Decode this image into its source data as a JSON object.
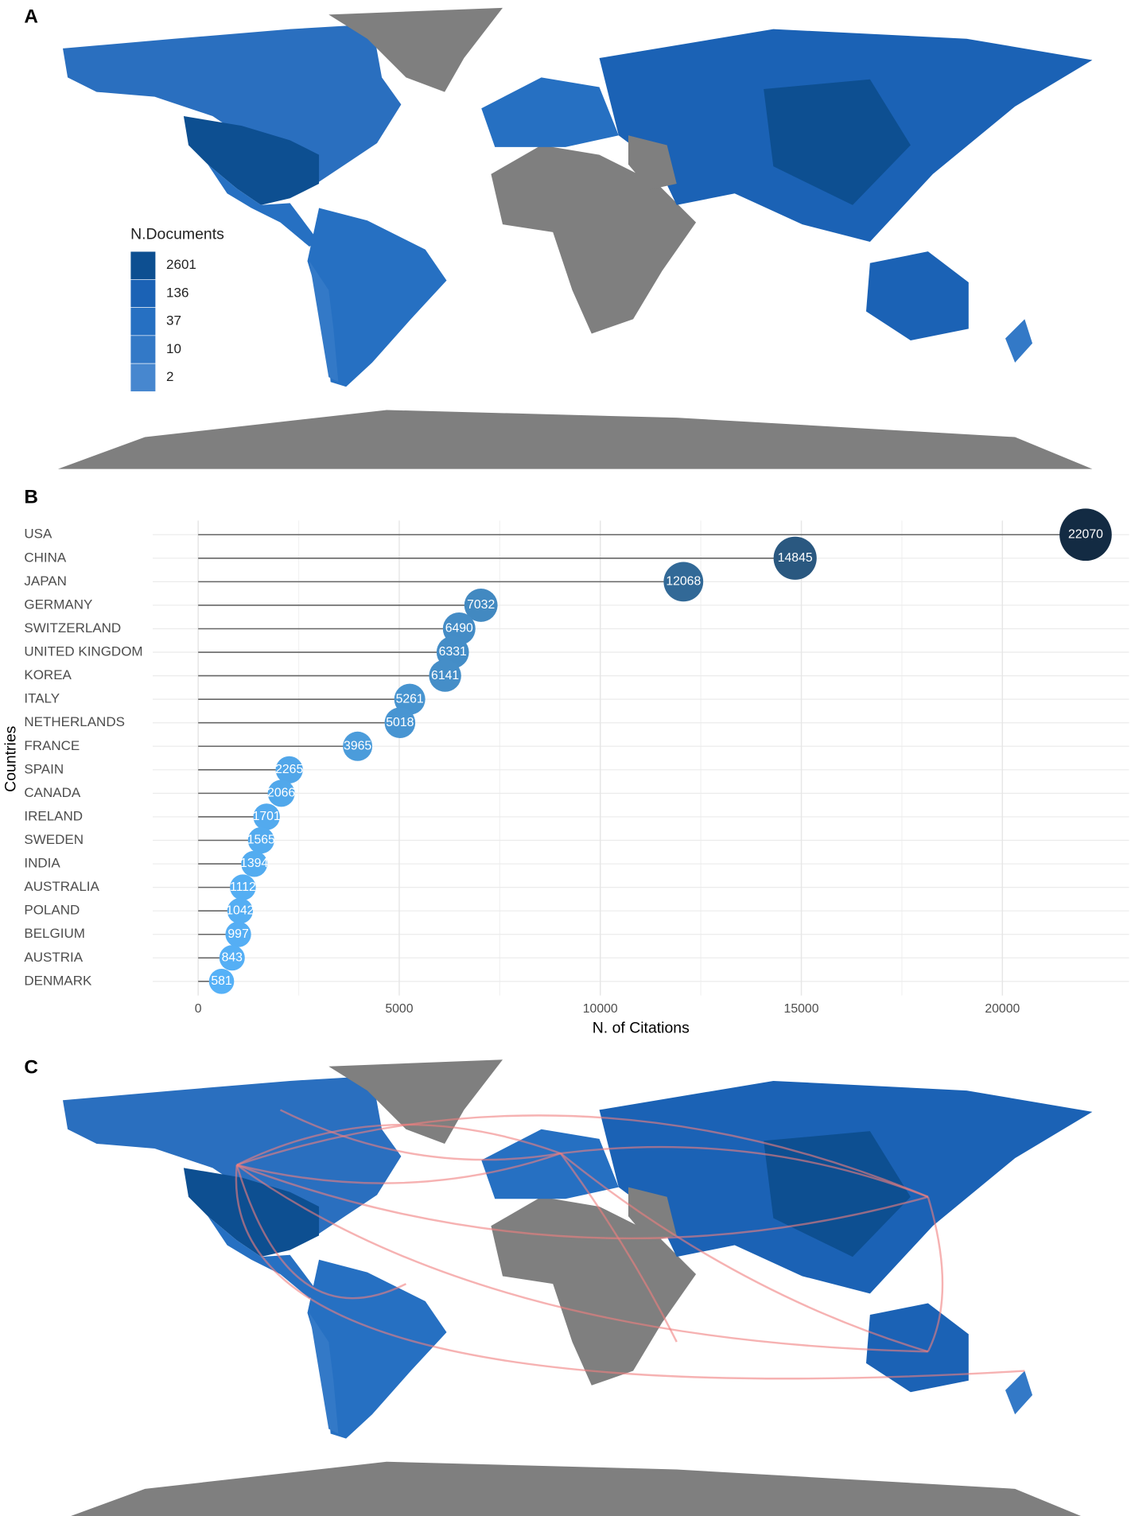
{
  "chart_data": [
    {
      "type": "map",
      "panel_label": "A",
      "legend_title": "N.Documents",
      "legend_values": [
        2601,
        136,
        37,
        10,
        2
      ],
      "legend_colors": [
        "#0d4f91",
        "#1b62b5",
        "#2670c2",
        "#3379c7",
        "#4787cf"
      ]
    },
    {
      "type": "lollipop",
      "panel_label": "B",
      "y_label": "Countries",
      "x_label": "N. of Citations",
      "categories": [
        "USA",
        "CHINA",
        "JAPAN",
        "GERMANY",
        "SWITZERLAND",
        "UNITED KINGDOM",
        "KOREA",
        "ITALY",
        "NETHERLANDS",
        "FRANCE",
        "SPAIN",
        "CANADA",
        "IRELAND",
        "SWEDEN",
        "INDIA",
        "AUSTRALIA",
        "POLAND",
        "BELGIUM",
        "AUSTRIA",
        "DENMARK"
      ],
      "values": [
        22070,
        14845,
        12068,
        7032,
        6490,
        6331,
        6141,
        5261,
        5018,
        3965,
        2265,
        2066,
        1701,
        1565,
        1394,
        1112,
        1042,
        997,
        843,
        581
      ],
      "xlim": [
        -1130,
        23150
      ],
      "xticks": [
        0,
        5000,
        10000,
        15000,
        20000
      ],
      "grid": true,
      "color_low": "#56b1f7",
      "color_high": "#132b43"
    },
    {
      "type": "map",
      "panel_label": "C"
    }
  ]
}
